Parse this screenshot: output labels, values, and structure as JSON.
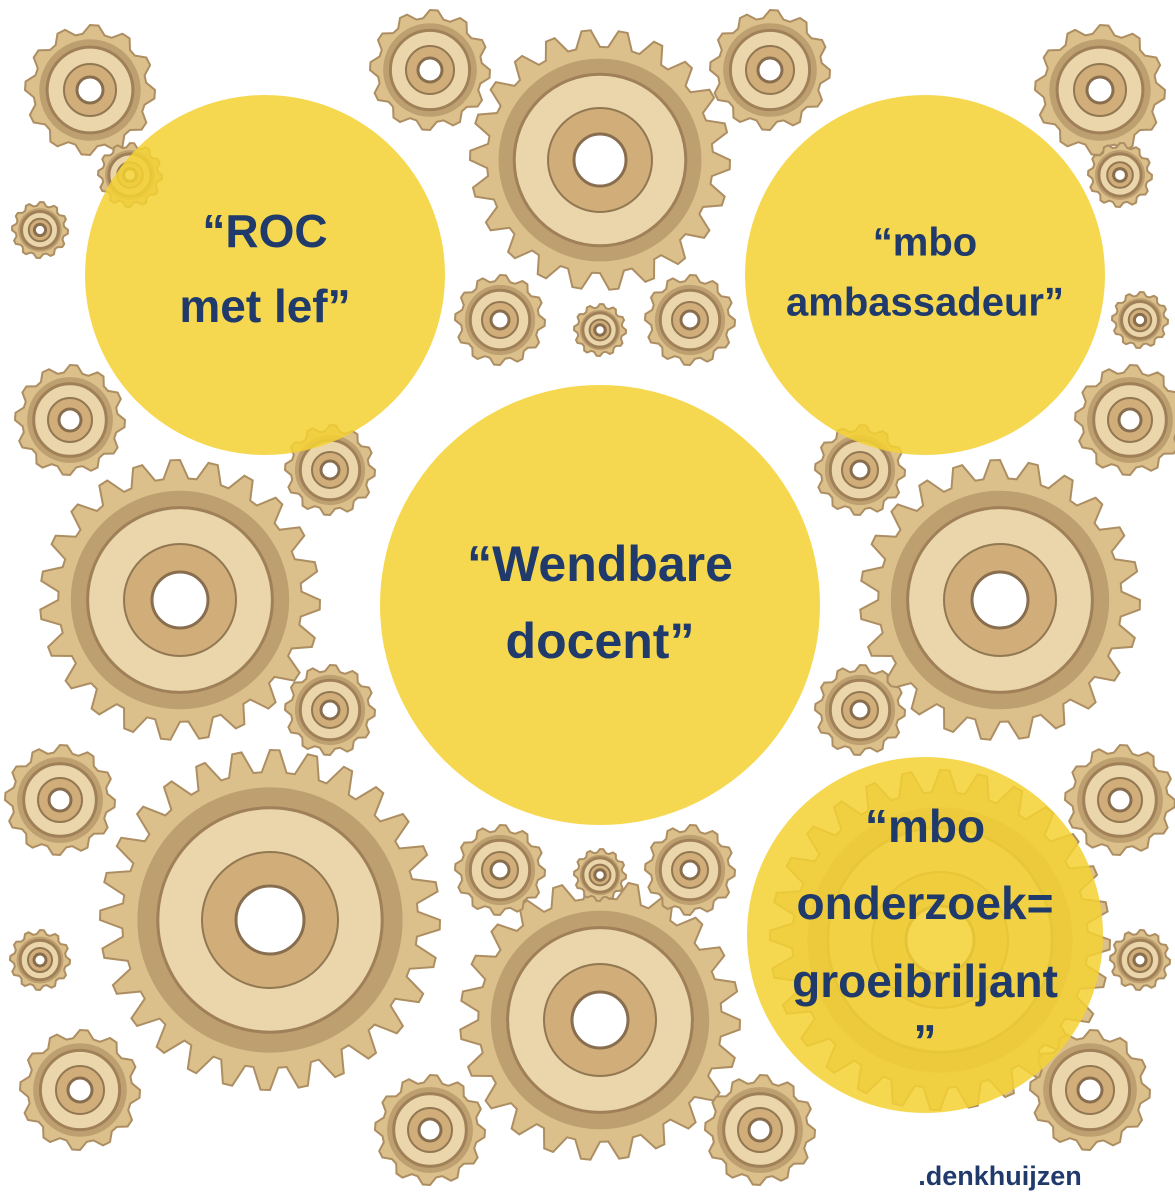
{
  "bubbles": [
    {
      "lines": [
        "“ROC",
        "met lef”"
      ]
    },
    {
      "lines": [
        "“mbo",
        "ambassadeur”"
      ]
    },
    {
      "lines": [
        "“Wendbare",
        "docent”"
      ]
    },
    {
      "lines": [
        "“mbo",
        "onderzoek=",
        "groeibriljant",
        "”"
      ]
    }
  ],
  "brand": ".denkhuijzen"
}
